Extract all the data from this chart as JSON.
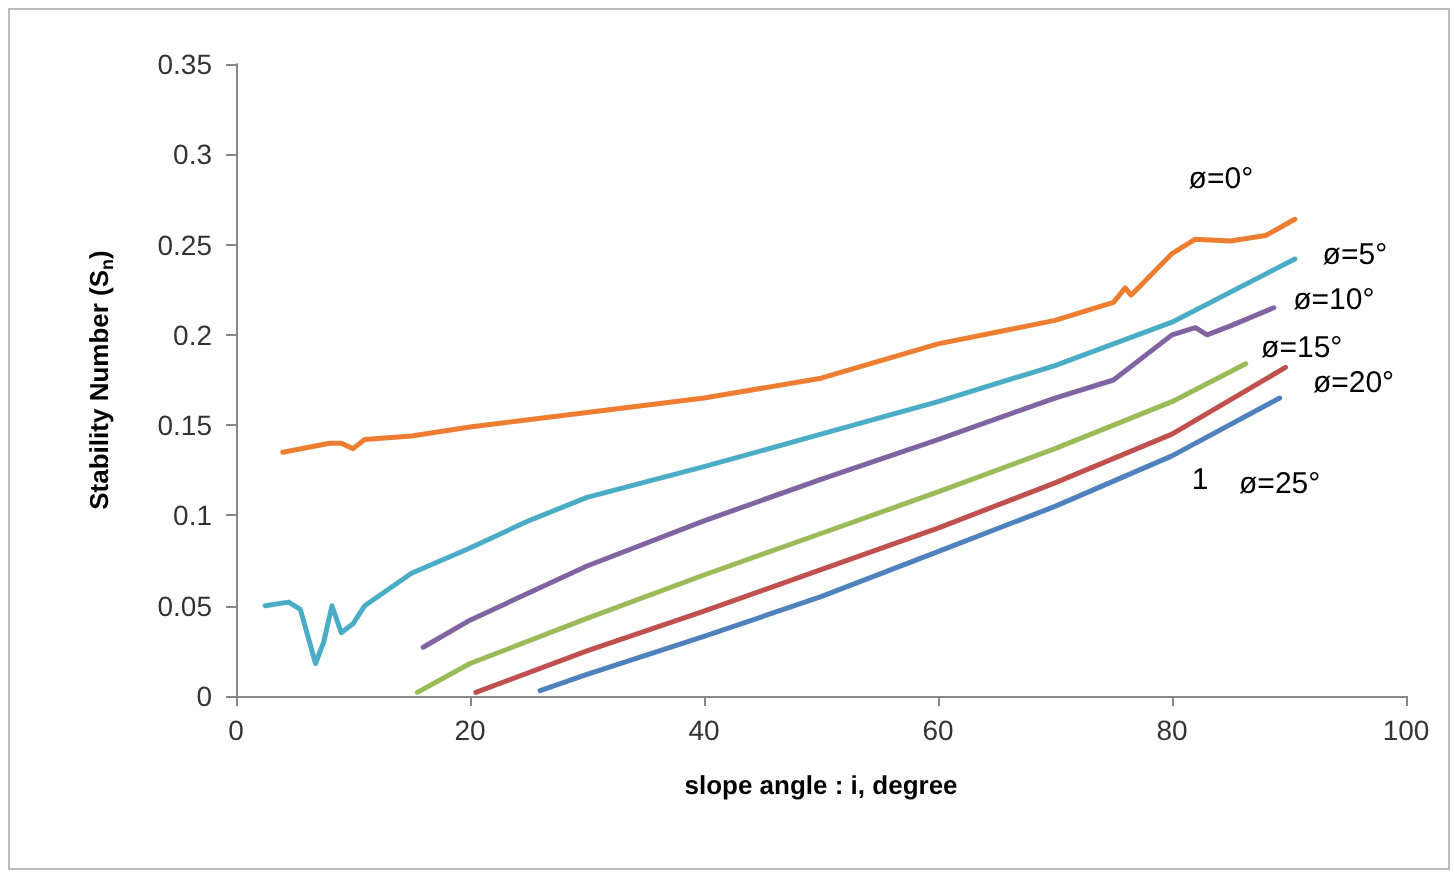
{
  "chart_data": {
    "type": "line",
    "xlabel": "slope angle : i, degree",
    "ylabel": "Stability Number (S$_{n}$)",
    "xlim": [
      0,
      100
    ],
    "xticks": [
      0,
      20,
      40,
      60,
      80,
      100
    ],
    "ylim": [
      0,
      0.35
    ],
    "yticks": [
      0,
      0.05,
      0.1,
      0.15,
      0.2,
      0.25,
      0.3,
      0.35
    ],
    "grid": false,
    "marker": "none",
    "line_style": "solid",
    "series": [
      {
        "name": "ø=0°",
        "color": "#ed7d31",
        "x": [
          4,
          8,
          9,
          10,
          11,
          15,
          20,
          30,
          40,
          50,
          60,
          70,
          75,
          76,
          76.5,
          80,
          82,
          85,
          88,
          90.5
        ],
        "values": [
          0.135,
          0.14,
          0.14,
          0.137,
          0.142,
          0.144,
          0.149,
          0.157,
          0.165,
          0.176,
          0.195,
          0.208,
          0.218,
          0.226,
          0.222,
          0.245,
          0.253,
          0.252,
          0.255,
          0.264
        ]
      },
      {
        "name": "ø=5°",
        "color": "#4bacc6",
        "x": [
          2.5,
          4.5,
          5.5,
          6.8,
          7.5,
          8.2,
          9,
          10,
          11,
          15,
          20,
          25,
          30,
          40,
          50,
          60,
          70,
          80,
          90.5
        ],
        "values": [
          0.05,
          0.052,
          0.048,
          0.018,
          0.03,
          0.05,
          0.035,
          0.04,
          0.05,
          0.068,
          0.082,
          0.097,
          0.11,
          0.127,
          0.145,
          0.163,
          0.183,
          0.207,
          0.242
        ]
      },
      {
        "name": "ø=10°",
        "color": "#8064a2",
        "x": [
          16,
          20,
          30,
          40,
          50,
          60,
          70,
          75,
          80,
          82,
          83,
          85,
          88.7
        ],
        "values": [
          0.027,
          0.042,
          0.072,
          0.097,
          0.12,
          0.142,
          0.165,
          0.175,
          0.2,
          0.204,
          0.2,
          0.205,
          0.215
        ]
      },
      {
        "name": "ø=15°",
        "color": "#9bbb59",
        "x": [
          15.5,
          20,
          30,
          40,
          50,
          60,
          70,
          80,
          86.3
        ],
        "values": [
          0.002,
          0.018,
          0.043,
          0.067,
          0.09,
          0.113,
          0.137,
          0.163,
          0.184
        ]
      },
      {
        "name": "ø=20°",
        "color": "#c0504d",
        "x": [
          20.5,
          30,
          40,
          50,
          60,
          70,
          80,
          89.7
        ],
        "values": [
          0.002,
          0.025,
          0.047,
          0.07,
          0.093,
          0.118,
          0.145,
          0.182
        ]
      },
      {
        "name": "ø=25°",
        "color": "#4f81bd",
        "x": [
          26,
          30,
          40,
          50,
          60,
          70,
          80,
          89.2
        ],
        "values": [
          0.003,
          0.012,
          0.033,
          0.055,
          0.08,
          0.105,
          0.133,
          0.165
        ]
      }
    ],
    "annotations": [
      "1"
    ]
  }
}
